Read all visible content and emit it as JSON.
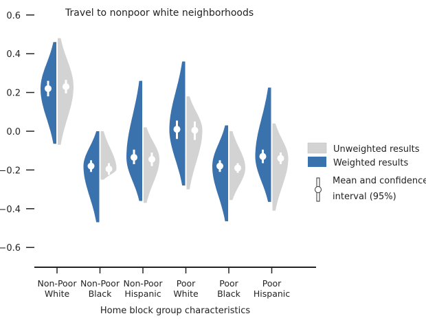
{
  "chart_data": {
    "type": "violin",
    "title": "Travel to nonpoor white neighborhoods",
    "xlabel": "Home block group characteristics",
    "ylabel": "",
    "ylim": [
      -0.7,
      0.62
    ],
    "yticks": [
      0.6,
      0.4,
      0.2,
      0.0,
      -0.2,
      -0.4,
      -0.6
    ],
    "ytick_labels": [
      "0.6",
      "0.4",
      "0.2",
      "0.0",
      "−0.2",
      "−0.4",
      "−0.6"
    ],
    "categories": [
      {
        "line1": "Non-Poor",
        "line2": "White"
      },
      {
        "line1": "Non-Poor",
        "line2": "Black"
      },
      {
        "line1": "Non-Poor",
        "line2": "Hispanic"
      },
      {
        "line1": "Poor",
        "line2": "White"
      },
      {
        "line1": "Poor",
        "line2": "Black"
      },
      {
        "line1": "Poor",
        "line2": "Hispanic"
      }
    ],
    "legend": {
      "unweighted": "Unweighted results",
      "weighted": "Weighted results",
      "ci_line1": "Mean and confidence",
      "ci_line2": "interval (95%)"
    },
    "colors": {
      "weighted": "#3a72ad",
      "unweighted": "#d3d3d3",
      "marker": "#ffffff",
      "axis": "#222222"
    },
    "series": [
      {
        "name": "Weighted results",
        "side": "left",
        "stats": [
          {
            "min": -0.065,
            "max": 0.46,
            "mean": 0.22,
            "ci": [
              0.18,
              0.26
            ]
          },
          {
            "min": -0.47,
            "max": 0.0,
            "mean": -0.18,
            "ci": [
              -0.21,
              -0.15
            ]
          },
          {
            "min": -0.36,
            "max": 0.26,
            "mean": -0.135,
            "ci": [
              -0.17,
              -0.095
            ]
          },
          {
            "min": -0.28,
            "max": 0.36,
            "mean": 0.01,
            "ci": [
              -0.04,
              0.055
            ]
          },
          {
            "min": -0.465,
            "max": 0.03,
            "mean": -0.18,
            "ci": [
              -0.21,
              -0.15
            ]
          },
          {
            "min": -0.365,
            "max": 0.225,
            "mean": -0.13,
            "ci": [
              -0.165,
              -0.095
            ]
          }
        ]
      },
      {
        "name": "Unweighted results",
        "side": "right",
        "stats": [
          {
            "min": -0.07,
            "max": 0.48,
            "mean": 0.23,
            "ci": [
              0.195,
              0.265
            ]
          },
          {
            "min": -0.25,
            "max": 0.0,
            "mean": -0.195,
            "ci": [
              -0.225,
              -0.165
            ]
          },
          {
            "min": -0.37,
            "max": 0.02,
            "mean": -0.145,
            "ci": [
              -0.18,
              -0.11
            ]
          },
          {
            "min": -0.3,
            "max": 0.18,
            "mean": 0.005,
            "ci": [
              -0.045,
              0.05
            ]
          },
          {
            "min": -0.355,
            "max": 0.0,
            "mean": -0.19,
            "ci": [
              -0.215,
              -0.165
            ]
          },
          {
            "min": -0.41,
            "max": 0.04,
            "mean": -0.14,
            "ci": [
              -0.17,
              -0.11
            ]
          }
        ]
      }
    ]
  }
}
